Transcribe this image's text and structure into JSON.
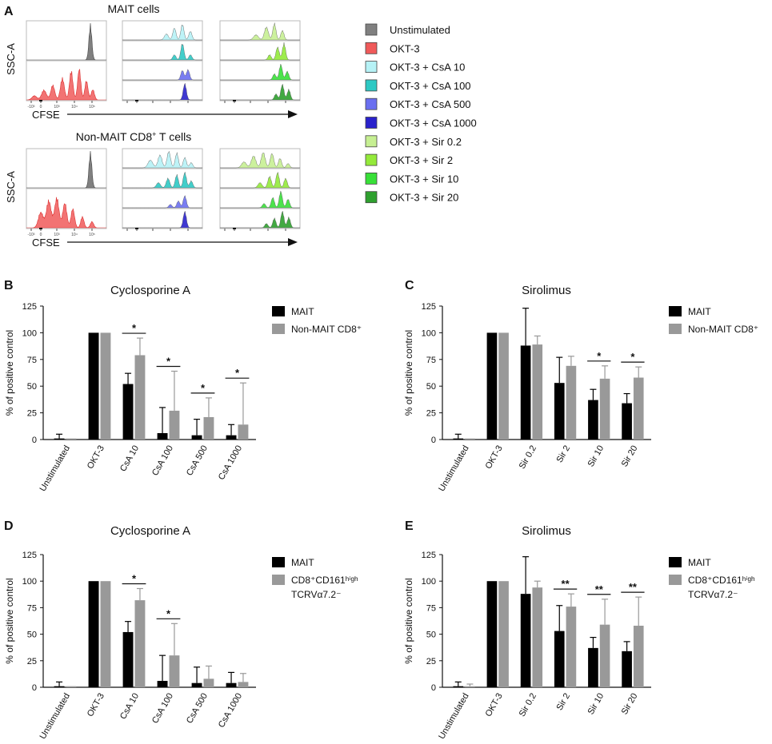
{
  "panel_labels": [
    "A",
    "B",
    "C",
    "D",
    "E"
  ],
  "colors": {
    "unstim": "#808080",
    "okt3": "#f05a5a",
    "csa10": "#b6f2f6",
    "csa100": "#2dc9c4",
    "csa500": "#6a6ff0",
    "csa1000": "#2a22cc",
    "sir02": "#c6ef92",
    "sir2": "#94ea3a",
    "sir10": "#38e038",
    "sir20": "#2ea02e",
    "mait_bar": "#000000",
    "other_bar": "#999999"
  },
  "histograms": {
    "y_axis_label": "SSC-A",
    "x_axis_label": "CFSE",
    "tick_labels": [
      "-10³",
      "0",
      "10³",
      "10⁴",
      "10⁵"
    ],
    "panels": [
      {
        "title": "MAIT cells",
        "subtitle": "",
        "profile": "mait"
      },
      {
        "title": "Non-MAIT CD8",
        "subtitle": "+",
        "title_tail": " T cells",
        "profile": "nonmait"
      }
    ]
  },
  "legend": {
    "items": [
      {
        "label": "Unstimulated",
        "color_key": "unstim"
      },
      {
        "label": "OKT-3",
        "color_key": "okt3"
      },
      {
        "label": "OKT-3 + CsA 10",
        "color_key": "csa10"
      },
      {
        "label": "OKT-3 + CsA 100",
        "color_key": "csa100"
      },
      {
        "label": "OKT-3 + CsA 500",
        "color_key": "csa500"
      },
      {
        "label": "OKT-3 + CsA 1000",
        "color_key": "csa1000"
      },
      {
        "label": "OKT-3 + Sir 0.2",
        "color_key": "sir02"
      },
      {
        "label": "OKT-3 + Sir 2",
        "color_key": "sir2"
      },
      {
        "label": "OKT-3 + Sir 10",
        "color_key": "sir10"
      },
      {
        "label": "OKT-3 + Sir 20",
        "color_key": "sir20"
      }
    ]
  },
  "chart_data": [
    {
      "id": "B",
      "type": "bar",
      "title": "Cyclosporine A",
      "ylabel": "% of positive control",
      "ylim": [
        0,
        125
      ],
      "yticks": [
        0,
        25,
        50,
        75,
        100,
        125
      ],
      "categories": [
        "Unstimulated",
        "OKT-3",
        "CsA 10",
        "CsA 100",
        "CsA 500",
        "CsA 1000"
      ],
      "series": [
        {
          "name": "MAIT",
          "values": [
            1,
            100,
            52,
            6,
            4,
            4
          ],
          "errors": [
            4,
            0,
            10,
            24,
            15,
            10
          ]
        },
        {
          "name": "Non-MAIT CD8⁺",
          "values": [
            1,
            100,
            79,
            27,
            21,
            14
          ],
          "errors": [
            0,
            0,
            16,
            37,
            18,
            39
          ]
        }
      ],
      "significance": [
        {
          "category": "CsA 10",
          "label": "*"
        },
        {
          "category": "CsA 100",
          "label": "*"
        },
        {
          "category": "CsA 500",
          "label": "*"
        },
        {
          "category": "CsA 1000",
          "label": "*"
        }
      ],
      "legend_labels": [
        "MAIT",
        "Non-MAIT CD8⁺"
      ]
    },
    {
      "id": "C",
      "type": "bar",
      "title": "Sirolimus",
      "ylabel": "% of positive control",
      "ylim": [
        0,
        125
      ],
      "yticks": [
        0,
        25,
        50,
        75,
        100,
        125
      ],
      "categories": [
        "Unstimulated",
        "OKT-3",
        "Sir 0.2",
        "Sir 2",
        "Sir 10",
        "Sir 20"
      ],
      "series": [
        {
          "name": "MAIT",
          "values": [
            1,
            100,
            88,
            53,
            37,
            34
          ],
          "errors": [
            4,
            0,
            35,
            24,
            10,
            9
          ]
        },
        {
          "name": "Non-MAIT CD8⁺",
          "values": [
            1,
            100,
            89,
            69,
            57,
            58
          ],
          "errors": [
            0,
            0,
            8,
            9,
            12,
            10
          ]
        }
      ],
      "significance": [
        {
          "category": "Sir 10",
          "label": "*"
        },
        {
          "category": "Sir 20",
          "label": "*"
        }
      ],
      "legend_labels": [
        "MAIT",
        "Non-MAIT CD8⁺"
      ]
    },
    {
      "id": "D",
      "type": "bar",
      "title": "Cyclosporine A",
      "ylabel": "% of positive control",
      "ylim": [
        0,
        125
      ],
      "yticks": [
        0,
        25,
        50,
        75,
        100,
        125
      ],
      "categories": [
        "Unstimulated",
        "OKT-3",
        "CsA 10",
        "CsA 100",
        "CsA 500",
        "CsA 1000"
      ],
      "series": [
        {
          "name": "MAIT",
          "values": [
            1,
            100,
            52,
            6,
            4,
            4
          ],
          "errors": [
            4,
            0,
            10,
            24,
            15,
            10
          ]
        },
        {
          "name": "CD8⁺CD161ʰⁱᵍʰ TCRVα7.2⁻",
          "values": [
            1,
            100,
            82,
            30,
            8,
            5
          ],
          "errors": [
            0,
            0,
            11,
            30,
            12,
            8
          ]
        }
      ],
      "significance": [
        {
          "category": "CsA 10",
          "label": "*"
        },
        {
          "category": "CsA 100",
          "label": "*"
        }
      ],
      "legend_labels": [
        "MAIT",
        "CD8⁺CD161ʰⁱᵍʰ",
        "TCRVα7.2⁻"
      ]
    },
    {
      "id": "E",
      "type": "bar",
      "title": "Sirolimus",
      "ylabel": "% of positive control",
      "ylim": [
        0,
        125
      ],
      "yticks": [
        0,
        25,
        50,
        75,
        100,
        125
      ],
      "categories": [
        "Unstimulated",
        "OKT-3",
        "Sir 0.2",
        "Sir 2",
        "Sir 10",
        "Sir 20"
      ],
      "series": [
        {
          "name": "MAIT",
          "values": [
            1,
            100,
            88,
            53,
            37,
            34
          ],
          "errors": [
            4,
            0,
            35,
            24,
            10,
            9
          ]
        },
        {
          "name": "CD8⁺CD161ʰⁱᵍʰ TCRVα7.2⁻",
          "values": [
            1,
            100,
            94,
            76,
            59,
            58
          ],
          "errors": [
            2,
            0,
            6,
            12,
            24,
            27
          ]
        }
      ],
      "significance": [
        {
          "category": "Sir 2",
          "label": "**"
        },
        {
          "category": "Sir 10",
          "label": "**"
        },
        {
          "category": "Sir 20",
          "label": "**"
        }
      ],
      "legend_labels": [
        "MAIT",
        "CD8⁺CD161ʰⁱᵍʰ",
        "TCRVα7.2⁻"
      ]
    }
  ]
}
